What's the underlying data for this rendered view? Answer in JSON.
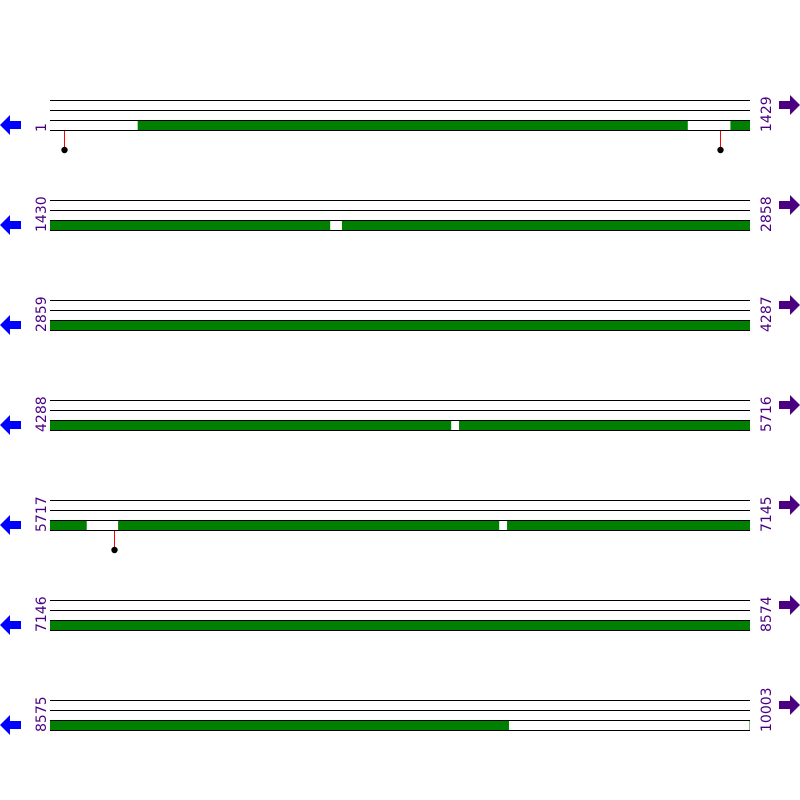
{
  "colors": {
    "feature": "#008000",
    "gap": "#ffffff",
    "marker_line": "#ff0000",
    "marker_dot": "#000000",
    "left_arrow": "#0000ff",
    "right_arrow": "#4b0082",
    "label": "#4b0082"
  },
  "icons": {
    "left": "arrow-left-icon",
    "right": "arrow-right-icon"
  },
  "bases_per_row": 1429,
  "rows": [
    {
      "start": "1",
      "end": "1429",
      "s": 1,
      "e": 1429,
      "gaps": [
        [
          1,
          180
        ],
        [
          1303,
          1390
        ]
      ],
      "markers": [
        29,
        1368
      ]
    },
    {
      "start": "1430",
      "end": "2858",
      "s": 1430,
      "e": 2858,
      "gaps": [
        [
          2002,
          2026
        ]
      ],
      "markers": []
    },
    {
      "start": "2859",
      "end": "4287",
      "s": 2859,
      "e": 4287,
      "gaps": [],
      "markers": []
    },
    {
      "start": "4288",
      "end": "5716",
      "s": 4288,
      "e": 5716,
      "gaps": [
        [
          5107,
          5123
        ]
      ],
      "markers": []
    },
    {
      "start": "5717",
      "end": "7145",
      "s": 5717,
      "e": 7145,
      "gaps": [
        [
          5792,
          5856
        ],
        [
          6634,
          6650
        ]
      ],
      "markers": [
        5848
      ]
    },
    {
      "start": "7146",
      "end": "8574",
      "s": 7146,
      "e": 8574,
      "gaps": [],
      "markers": []
    },
    {
      "start": "8575",
      "end": "10003",
      "s": 8575,
      "e": 10003,
      "gaps": [
        [
          9512,
          10003
        ]
      ],
      "markers": []
    }
  ]
}
